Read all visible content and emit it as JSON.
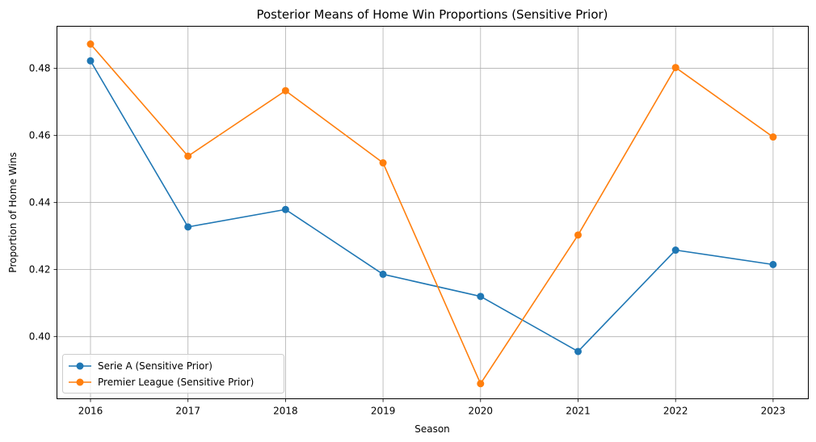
{
  "chart_data": {
    "type": "line",
    "title": "Posterior Means of Home Win Proportions (Sensitive Prior)",
    "xlabel": "Season",
    "ylabel": "Proportion of Home Wins",
    "x": [
      "2016",
      "2017",
      "2018",
      "2019",
      "2020",
      "2021",
      "2022",
      "2023"
    ],
    "ylim": [
      0.3815,
      0.4925
    ],
    "yticks": [
      "0.40",
      "0.42",
      "0.44",
      "0.46",
      "0.48"
    ],
    "grid": true,
    "legend_position": "lower-left",
    "series": [
      {
        "name": "Serie A (Sensitive Prior)",
        "color": "#1f77b4",
        "marker": "circle",
        "values": [
          0.4822,
          0.4327,
          0.4379,
          0.4186,
          0.412,
          0.3956,
          0.4258,
          0.4215
        ]
      },
      {
        "name": "Premier League (Sensitive Prior)",
        "color": "#ff7f0e",
        "marker": "circle",
        "values": [
          0.4872,
          0.4538,
          0.4733,
          0.4518,
          0.386,
          0.4303,
          0.4802,
          0.4595
        ]
      }
    ]
  }
}
